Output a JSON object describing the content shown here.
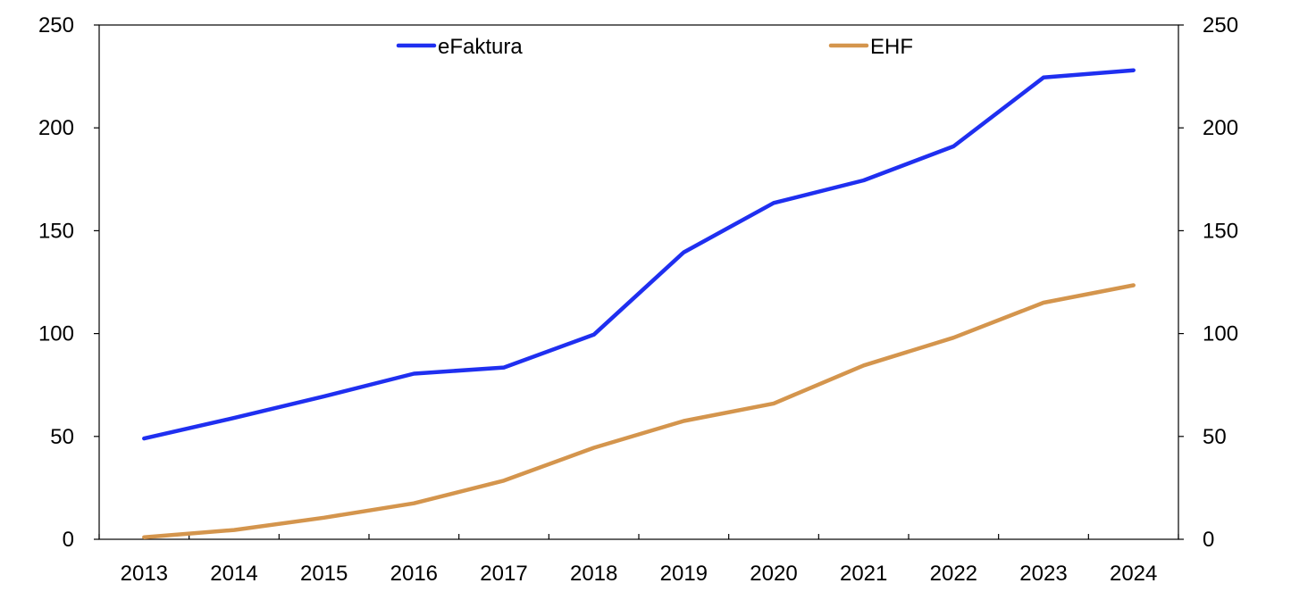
{
  "chart_data": {
    "type": "line",
    "title": "",
    "xlabel": "",
    "ylabel": "",
    "ylim": [
      0,
      250
    ],
    "y2lim": [
      0,
      250
    ],
    "yticks": [
      0,
      50,
      100,
      150,
      200,
      250
    ],
    "categories": [
      "2013",
      "2014",
      "2015",
      "2016",
      "2017",
      "2018",
      "2019",
      "2020",
      "2021",
      "2022",
      "2023",
      "2024"
    ],
    "legend_position": "top-center",
    "grid": false,
    "series": [
      {
        "name": "eFaktura",
        "color": "#1f2ff0",
        "values": [
          49,
          59,
          69.5,
          80.5,
          83.5,
          99.5,
          139.5,
          163.5,
          174.5,
          191,
          224.5,
          228
        ]
      },
      {
        "name": "EHF",
        "color": "#d4954d",
        "values": [
          1,
          4.5,
          10.5,
          17.5,
          28.5,
          44.5,
          57.5,
          66,
          84.5,
          98,
          115,
          123.5
        ]
      }
    ]
  }
}
